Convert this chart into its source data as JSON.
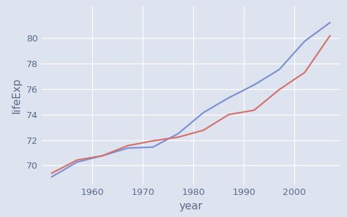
{
  "years": [
    1952,
    1957,
    1962,
    1967,
    1972,
    1977,
    1982,
    1987,
    1992,
    1997,
    2002,
    2007
  ],
  "blue_line": [
    69.1,
    70.26,
    70.76,
    71.36,
    71.44,
    72.5,
    74.16,
    75.32,
    76.33,
    77.55,
    79.77,
    81.23
  ],
  "red_line": [
    69.39,
    70.42,
    70.76,
    71.55,
    71.93,
    72.22,
    72.77,
    74.0,
    74.34,
    75.97,
    77.31,
    80.2
  ],
  "blue_color": "#7b8fd4",
  "red_color": "#d4716b",
  "xlabel": "year",
  "ylabel": "lifeExp",
  "xlim": [
    1950,
    2009
  ],
  "ylim": [
    68.5,
    82.5
  ],
  "bg_color": "#dde3ef",
  "grid_color": "#ffffff",
  "label_color": "#5a6a8a",
  "tick_color": "#5a6a8a",
  "xticks": [
    1960,
    1970,
    1980,
    1990,
    2000
  ],
  "yticks": [
    70,
    72,
    74,
    76,
    78,
    80
  ],
  "xlabel_fontsize": 11,
  "ylabel_fontsize": 11,
  "tick_fontsize": 9.5,
  "linewidth": 1.6
}
